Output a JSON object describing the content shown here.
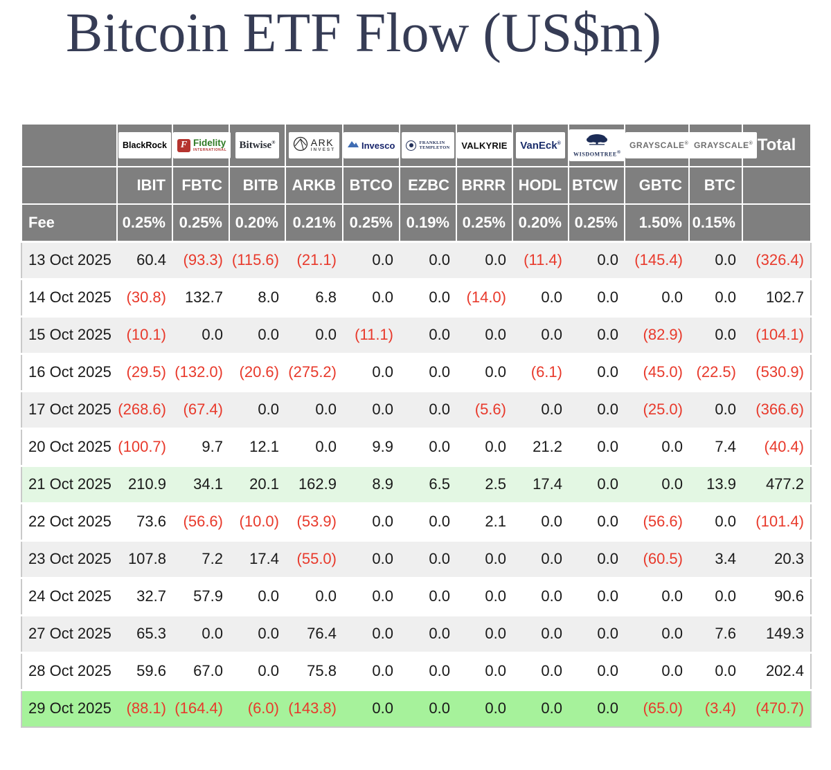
{
  "title": "Bitcoin ETF Flow (US$m)",
  "table": {
    "fee_label": "Fee",
    "total_label": "Total",
    "columns": [
      {
        "ticker": "IBIT",
        "fee": "0.25%",
        "provider": "BlackRock",
        "logo": "blackrock-logo",
        "logo_text": {
          "main": "BlackRock"
        }
      },
      {
        "ticker": "FBTC",
        "fee": "0.25%",
        "provider": "Fidelity International",
        "logo": "fidelity-logo",
        "logo_text": {
          "icon": "F",
          "main": "Fidelity",
          "sub": "INTERNATIONAL"
        }
      },
      {
        "ticker": "BITB",
        "fee": "0.20%",
        "provider": "Bitwise",
        "logo": "bitwise-logo",
        "logo_text": {
          "main": "Bitwise",
          "reg": "®"
        }
      },
      {
        "ticker": "ARKB",
        "fee": "0.21%",
        "provider": "ARK Invest",
        "logo": "ark-logo",
        "logo_text": {
          "main": "ARK",
          "sub": "INVEST"
        }
      },
      {
        "ticker": "BTCO",
        "fee": "0.25%",
        "provider": "Invesco",
        "logo": "invesco-logo",
        "logo_text": {
          "main": "Invesco"
        }
      },
      {
        "ticker": "EZBC",
        "fee": "0.19%",
        "provider": "Franklin Templeton",
        "logo": "franklin-logo",
        "logo_text": {
          "main": "FRANKLIN",
          "sub": "TEMPLETON"
        }
      },
      {
        "ticker": "BRRR",
        "fee": "0.25%",
        "provider": "Valkyrie",
        "logo": "valkyrie-logo",
        "logo_text": {
          "main": "VALKYRIE"
        }
      },
      {
        "ticker": "HODL",
        "fee": "0.20%",
        "provider": "VanEck",
        "logo": "vaneck-logo",
        "logo_text": {
          "main": "VanEck",
          "reg": "®"
        }
      },
      {
        "ticker": "BTCW",
        "fee": "0.25%",
        "provider": "WisdomTree",
        "logo": "wisdomtree-logo",
        "logo_text": {
          "main": "WISDOMTREE",
          "reg": "®"
        }
      },
      {
        "ticker": "GBTC",
        "fee": "1.50%",
        "provider": "Grayscale",
        "logo": "grayscale-logo",
        "logo_text": {
          "main": "GRAYSCALE",
          "reg": "®"
        }
      },
      {
        "ticker": "BTC",
        "fee": "0.15%",
        "provider": "Grayscale",
        "logo": "grayscale-logo",
        "logo_text": {
          "main": "GRAYSCALE",
          "reg": "®"
        }
      }
    ],
    "rows": [
      {
        "date": "13 Oct 2025",
        "bg": "gray",
        "values": [
          "60.4",
          "(93.3)",
          "(115.6)",
          "(21.1)",
          "0.0",
          "0.0",
          "0.0",
          "(11.4)",
          "0.0",
          "(145.4)",
          "0.0"
        ],
        "total": "(326.4)"
      },
      {
        "date": "14 Oct 2025",
        "bg": "white",
        "values": [
          "(30.8)",
          "132.7",
          "8.0",
          "6.8",
          "0.0",
          "0.0",
          "(14.0)",
          "0.0",
          "0.0",
          "0.0",
          "0.0"
        ],
        "total": "102.7"
      },
      {
        "date": "15 Oct 2025",
        "bg": "gray",
        "values": [
          "(10.1)",
          "0.0",
          "0.0",
          "0.0",
          "(11.1)",
          "0.0",
          "0.0",
          "0.0",
          "0.0",
          "(82.9)",
          "0.0"
        ],
        "total": "(104.1)"
      },
      {
        "date": "16 Oct 2025",
        "bg": "white",
        "values": [
          "(29.5)",
          "(132.0)",
          "(20.6)",
          "(275.2)",
          "0.0",
          "0.0",
          "0.0",
          "(6.1)",
          "0.0",
          "(45.0)",
          "(22.5)"
        ],
        "total": "(530.9)"
      },
      {
        "date": "17 Oct 2025",
        "bg": "gray",
        "values": [
          "(268.6)",
          "(67.4)",
          "0.0",
          "0.0",
          "0.0",
          "0.0",
          "(5.6)",
          "0.0",
          "0.0",
          "(25.0)",
          "0.0"
        ],
        "total": "(366.6)"
      },
      {
        "date": "20 Oct 2025",
        "bg": "white",
        "values": [
          "(100.7)",
          "9.7",
          "12.1",
          "0.0",
          "9.9",
          "0.0",
          "0.0",
          "21.2",
          "0.0",
          "0.0",
          "7.4"
        ],
        "total": "(40.4)"
      },
      {
        "date": "21 Oct 2025",
        "bg": "palegreen",
        "values": [
          "210.9",
          "34.1",
          "20.1",
          "162.9",
          "8.9",
          "6.5",
          "2.5",
          "17.4",
          "0.0",
          "0.0",
          "13.9"
        ],
        "total": "477.2"
      },
      {
        "date": "22 Oct 2025",
        "bg": "white",
        "values": [
          "73.6",
          "(56.6)",
          "(10.0)",
          "(53.9)",
          "0.0",
          "0.0",
          "2.1",
          "0.0",
          "0.0",
          "(56.6)",
          "0.0"
        ],
        "total": "(101.4)"
      },
      {
        "date": "23 Oct 2025",
        "bg": "gray",
        "values": [
          "107.8",
          "7.2",
          "17.4",
          "(55.0)",
          "0.0",
          "0.0",
          "0.0",
          "0.0",
          "0.0",
          "(60.5)",
          "3.4"
        ],
        "total": "20.3"
      },
      {
        "date": "24 Oct 2025",
        "bg": "white",
        "values": [
          "32.7",
          "57.9",
          "0.0",
          "0.0",
          "0.0",
          "0.0",
          "0.0",
          "0.0",
          "0.0",
          "0.0",
          "0.0"
        ],
        "total": "90.6"
      },
      {
        "date": "27 Oct 2025",
        "bg": "gray",
        "values": [
          "65.3",
          "0.0",
          "0.0",
          "76.4",
          "0.0",
          "0.0",
          "0.0",
          "0.0",
          "0.0",
          "0.0",
          "7.6"
        ],
        "total": "149.3"
      },
      {
        "date": "28 Oct 2025",
        "bg": "white",
        "values": [
          "59.6",
          "67.0",
          "0.0",
          "75.8",
          "0.0",
          "0.0",
          "0.0",
          "0.0",
          "0.0",
          "0.0",
          "0.0"
        ],
        "total": "202.4"
      },
      {
        "date": "29 Oct 2025",
        "bg": "green",
        "values": [
          "(88.1)",
          "(164.4)",
          "(6.0)",
          "(143.8)",
          "0.0",
          "0.0",
          "0.0",
          "0.0",
          "0.0",
          "(65.0)",
          "(3.4)"
        ],
        "total": "(470.7)"
      }
    ]
  },
  "colors": {
    "header_bg": "#7f7f7f",
    "row_alt_bg": "#efefef",
    "row_green_light": "#e3f7e3",
    "row_green_bright": "#a6f29b",
    "negative_red": "#e8392b",
    "title_navy": "#363c55"
  },
  "chart_data": {
    "type": "table",
    "title": "Bitcoin ETF Flow (US$m)",
    "columns": [
      "IBIT",
      "FBTC",
      "BITB",
      "ARKB",
      "BTCO",
      "EZBC",
      "BRRR",
      "HODL",
      "BTCW",
      "GBTC",
      "BTC",
      "Total"
    ],
    "providers": [
      "BlackRock",
      "Fidelity",
      "Bitwise",
      "ARK Invest",
      "Invesco",
      "Franklin Templeton",
      "Valkyrie",
      "VanEck",
      "WisdomTree",
      "Grayscale",
      "Grayscale",
      ""
    ],
    "fees_pct": [
      0.25,
      0.25,
      0.2,
      0.21,
      0.25,
      0.19,
      0.25,
      0.2,
      0.25,
      1.5,
      0.15,
      null
    ],
    "row_dates": [
      "13 Oct 2025",
      "14 Oct 2025",
      "15 Oct 2025",
      "16 Oct 2025",
      "17 Oct 2025",
      "20 Oct 2025",
      "21 Oct 2025",
      "22 Oct 2025",
      "23 Oct 2025",
      "24 Oct 2025",
      "27 Oct 2025",
      "28 Oct 2025",
      "29 Oct 2025"
    ],
    "values": [
      [
        60.4,
        -93.3,
        -115.6,
        -21.1,
        0.0,
        0.0,
        0.0,
        -11.4,
        0.0,
        -145.4,
        0.0,
        -326.4
      ],
      [
        -30.8,
        132.7,
        8.0,
        6.8,
        0.0,
        0.0,
        -14.0,
        0.0,
        0.0,
        0.0,
        0.0,
        102.7
      ],
      [
        -10.1,
        0.0,
        0.0,
        0.0,
        -11.1,
        0.0,
        0.0,
        0.0,
        0.0,
        -82.9,
        0.0,
        -104.1
      ],
      [
        -29.5,
        -132.0,
        -20.6,
        -275.2,
        0.0,
        0.0,
        0.0,
        -6.1,
        0.0,
        -45.0,
        -22.5,
        -530.9
      ],
      [
        -268.6,
        -67.4,
        0.0,
        0.0,
        0.0,
        0.0,
        -5.6,
        0.0,
        0.0,
        -25.0,
        0.0,
        -366.6
      ],
      [
        -100.7,
        9.7,
        12.1,
        0.0,
        9.9,
        0.0,
        0.0,
        21.2,
        0.0,
        0.0,
        7.4,
        -40.4
      ],
      [
        210.9,
        34.1,
        20.1,
        162.9,
        8.9,
        6.5,
        2.5,
        17.4,
        0.0,
        0.0,
        13.9,
        477.2
      ],
      [
        73.6,
        -56.6,
        -10.0,
        -53.9,
        0.0,
        0.0,
        2.1,
        0.0,
        0.0,
        -56.6,
        0.0,
        -101.4
      ],
      [
        107.8,
        7.2,
        17.4,
        -55.0,
        0.0,
        0.0,
        0.0,
        0.0,
        0.0,
        -60.5,
        3.4,
        20.3
      ],
      [
        32.7,
        57.9,
        0.0,
        0.0,
        0.0,
        0.0,
        0.0,
        0.0,
        0.0,
        0.0,
        0.0,
        90.6
      ],
      [
        65.3,
        0.0,
        0.0,
        76.4,
        0.0,
        0.0,
        0.0,
        0.0,
        0.0,
        0.0,
        7.6,
        149.3
      ],
      [
        59.6,
        67.0,
        0.0,
        75.8,
        0.0,
        0.0,
        0.0,
        0.0,
        0.0,
        0.0,
        0.0,
        202.4
      ],
      [
        -88.1,
        -164.4,
        -6.0,
        -143.8,
        0.0,
        0.0,
        0.0,
        0.0,
        0.0,
        -65.0,
        -3.4,
        -470.7
      ]
    ],
    "negative_format": "red parentheses",
    "highlighted_rows": {
      "21 Oct 2025": "light-green",
      "29 Oct 2025": "bright-green"
    }
  }
}
